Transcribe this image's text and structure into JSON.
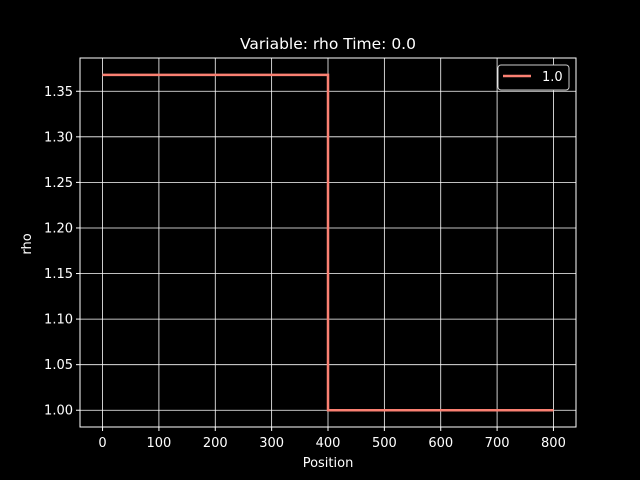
{
  "chart_data": {
    "type": "line",
    "title": "Variable: rho Time: 0.0",
    "xlabel": "Position",
    "ylabel": "rho",
    "xlim": [
      -40,
      840
    ],
    "ylim": [
      0.9816,
      1.3865
    ],
    "xticks": [
      0,
      100,
      200,
      300,
      400,
      500,
      600,
      700,
      800
    ],
    "xtick_labels": [
      "0",
      "100",
      "200",
      "300",
      "400",
      "500",
      "600",
      "700",
      "800"
    ],
    "yticks": [
      1.0,
      1.05,
      1.1,
      1.15,
      1.2,
      1.25,
      1.3,
      1.35
    ],
    "ytick_labels": [
      "1.00",
      "1.05",
      "1.10",
      "1.15",
      "1.20",
      "1.25",
      "1.30",
      "1.35"
    ],
    "grid": true,
    "legend_position": "upper right",
    "series": [
      {
        "name": "1.0",
        "color": "#fa8072",
        "x": [
          0,
          400,
          400,
          800
        ],
        "y": [
          1.368,
          1.368,
          1.0,
          1.0
        ]
      }
    ]
  },
  "colors": {
    "background": "#000000",
    "axes": "#ffffff",
    "grid": "#ffffff"
  }
}
